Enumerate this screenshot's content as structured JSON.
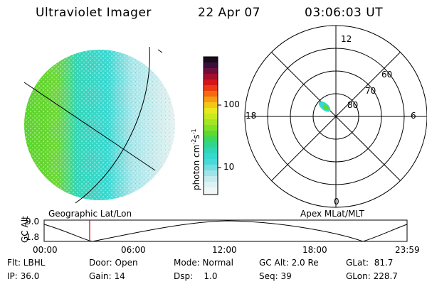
{
  "header": {
    "instrument": "Ultraviolet Imager",
    "date": "22 Apr 07",
    "time": "03:06:03 UT"
  },
  "colorbar": {
    "unit_label": "photon cm-2s-1",
    "ticks": [
      "100",
      "10"
    ],
    "scale": "log"
  },
  "polar_plot": {
    "mlt_labels": [
      "12",
      "18",
      "6",
      "0"
    ],
    "lat_labels": [
      "60",
      "70",
      "80"
    ]
  },
  "timeline": {
    "left_title": "Geographic Lat/Lon",
    "right_title": "Apex MLat/MLT",
    "y_label": "GC Alt",
    "y_ticks": [
      "9.0",
      "1.8"
    ],
    "x_ticks": [
      "00:00",
      "06:00",
      "12:00",
      "18:00",
      "23:59"
    ],
    "current_marker_time": "03:06"
  },
  "status": {
    "flt": "Flt: LBHL",
    "ip": "IP: 36.0",
    "door": "Door: Open",
    "gain": "Gain: 14",
    "mode": "Mode: Normal",
    "dsp": "Dsp:    1.0",
    "gc_alt": "GC Alt: 2.0 Re",
    "seq": "Seq: 39",
    "glat": "GLat:  81.7",
    "glon": "GLon: 228.7"
  },
  "colors": {
    "marker": "#cc0000",
    "aurora_green": "#55dd22",
    "aurora_cyan": "#33ddcc",
    "aurora_pale": "#cdeef0"
  }
}
